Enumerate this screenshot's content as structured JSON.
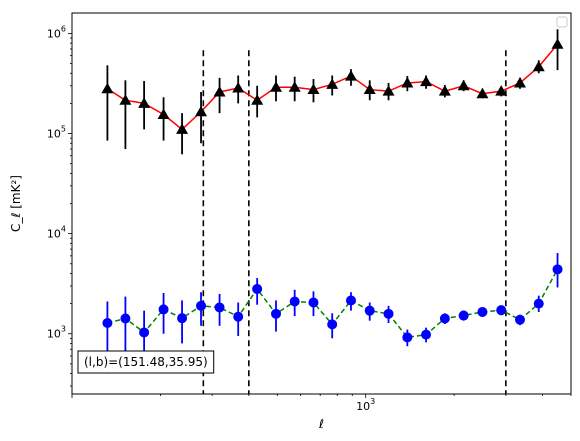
{
  "chart_data": {
    "type": "scatter",
    "xscale": "log",
    "yscale": "log",
    "xlim": [
      100,
      5000
    ],
    "ylim": [
      250,
      1600000
    ],
    "xlabel": "ℓ",
    "ylabel": "C_ℓ  [mK²]",
    "x_tick_labels": [
      {
        "value": 1000,
        "base": "10",
        "exp": "3"
      }
    ],
    "y_tick_labels": [
      {
        "value": 1000,
        "base": "10",
        "exp": "3"
      },
      {
        "value": 10000,
        "base": "10",
        "exp": "4"
      },
      {
        "value": 100000,
        "base": "10",
        "exp": "5"
      },
      {
        "value": 1000000,
        "base": "10",
        "exp": "6"
      }
    ],
    "grid": false,
    "legend": "top-right (empty)",
    "annotation": "(l,b)=(151.48,35.95)",
    "vlines": [
      {
        "x": 280,
        "ymin": 250,
        "ymax": 680000
      },
      {
        "x": 400,
        "ymin": 250,
        "ymax": 680000
      },
      {
        "x": 3000,
        "ymin": 250,
        "ymax": 680000
      }
    ],
    "series": [
      {
        "marker": "triangle",
        "color": "#000000",
        "line_color": "#ff0000",
        "line_style": "solid",
        "points": [
          {
            "x": 132,
            "y": 280000,
            "lo": 85000,
            "hi": 480000
          },
          {
            "x": 152,
            "y": 215000,
            "lo": 70000,
            "hi": 340000
          },
          {
            "x": 176,
            "y": 200000,
            "lo": 110000,
            "hi": 335000
          },
          {
            "x": 205,
            "y": 155000,
            "lo": 85000,
            "hi": 230000
          },
          {
            "x": 237,
            "y": 110000,
            "lo": 62000,
            "hi": 160000
          },
          {
            "x": 275,
            "y": 165000,
            "lo": 80000,
            "hi": 260000
          },
          {
            "x": 318,
            "y": 260000,
            "lo": 160000,
            "hi": 360000
          },
          {
            "x": 368,
            "y": 285000,
            "lo": 200000,
            "hi": 380000
          },
          {
            "x": 427,
            "y": 215000,
            "lo": 145000,
            "hi": 300000
          },
          {
            "x": 495,
            "y": 290000,
            "lo": 210000,
            "hi": 380000
          },
          {
            "x": 573,
            "y": 290000,
            "lo": 210000,
            "hi": 370000
          },
          {
            "x": 664,
            "y": 275000,
            "lo": 205000,
            "hi": 350000
          },
          {
            "x": 769,
            "y": 310000,
            "lo": 240000,
            "hi": 380000
          },
          {
            "x": 891,
            "y": 375000,
            "lo": 300000,
            "hi": 440000
          },
          {
            "x": 1032,
            "y": 275000,
            "lo": 215000,
            "hi": 340000
          },
          {
            "x": 1196,
            "y": 265000,
            "lo": 215000,
            "hi": 320000
          },
          {
            "x": 1386,
            "y": 320000,
            "lo": 265000,
            "hi": 375000
          },
          {
            "x": 1605,
            "y": 330000,
            "lo": 280000,
            "hi": 380000
          },
          {
            "x": 1860,
            "y": 265000,
            "lo": 230000,
            "hi": 305000
          },
          {
            "x": 2155,
            "y": 300000,
            "lo": 265000,
            "hi": 340000
          },
          {
            "x": 2497,
            "y": 250000,
            "lo": 225000,
            "hi": 280000
          },
          {
            "x": 2893,
            "y": 265000,
            "lo": 235000,
            "hi": 295000
          },
          {
            "x": 3352,
            "y": 320000,
            "lo": 280000,
            "hi": 360000
          },
          {
            "x": 3883,
            "y": 465000,
            "lo": 400000,
            "hi": 540000
          },
          {
            "x": 4499,
            "y": 780000,
            "lo": 430000,
            "hi": 1100000
          }
        ]
      },
      {
        "marker": "circle",
        "color": "#0000ff",
        "line_color": "#008000",
        "line_style": "dashed",
        "points": [
          {
            "x": 132,
            "y": 1280,
            "lo": 400,
            "hi": 2100
          },
          {
            "x": 152,
            "y": 1420,
            "lo": 600,
            "hi": 2350
          },
          {
            "x": 176,
            "y": 1030,
            "lo": 450,
            "hi": 1700
          },
          {
            "x": 205,
            "y": 1750,
            "lo": 1000,
            "hi": 2550
          },
          {
            "x": 237,
            "y": 1430,
            "lo": 800,
            "hi": 2150
          },
          {
            "x": 275,
            "y": 1900,
            "lo": 1200,
            "hi": 2600
          },
          {
            "x": 318,
            "y": 1830,
            "lo": 1200,
            "hi": 2500
          },
          {
            "x": 368,
            "y": 1480,
            "lo": 950,
            "hi": 2050
          },
          {
            "x": 427,
            "y": 2800,
            "lo": 1950,
            "hi": 3600
          },
          {
            "x": 495,
            "y": 1580,
            "lo": 1050,
            "hi": 2150
          },
          {
            "x": 573,
            "y": 2100,
            "lo": 1500,
            "hi": 2750
          },
          {
            "x": 664,
            "y": 2050,
            "lo": 1500,
            "hi": 2650
          },
          {
            "x": 769,
            "y": 1240,
            "lo": 900,
            "hi": 1600
          },
          {
            "x": 891,
            "y": 2150,
            "lo": 1700,
            "hi": 2600
          },
          {
            "x": 1032,
            "y": 1700,
            "lo": 1350,
            "hi": 2050
          },
          {
            "x": 1196,
            "y": 1580,
            "lo": 1280,
            "hi": 1900
          },
          {
            "x": 1386,
            "y": 920,
            "lo": 750,
            "hi": 1100
          },
          {
            "x": 1605,
            "y": 980,
            "lo": 820,
            "hi": 1150
          },
          {
            "x": 1860,
            "y": 1420,
            "lo": 1250,
            "hi": 1600
          },
          {
            "x": 2155,
            "y": 1520,
            "lo": 1350,
            "hi": 1700
          },
          {
            "x": 2497,
            "y": 1650,
            "lo": 1470,
            "hi": 1840
          },
          {
            "x": 2893,
            "y": 1720,
            "lo": 1530,
            "hi": 1920
          },
          {
            "x": 3352,
            "y": 1380,
            "lo": 1220,
            "hi": 1550
          },
          {
            "x": 3883,
            "y": 2000,
            "lo": 1650,
            "hi": 2400
          },
          {
            "x": 4499,
            "y": 4400,
            "lo": 2900,
            "hi": 6400
          }
        ]
      }
    ]
  }
}
